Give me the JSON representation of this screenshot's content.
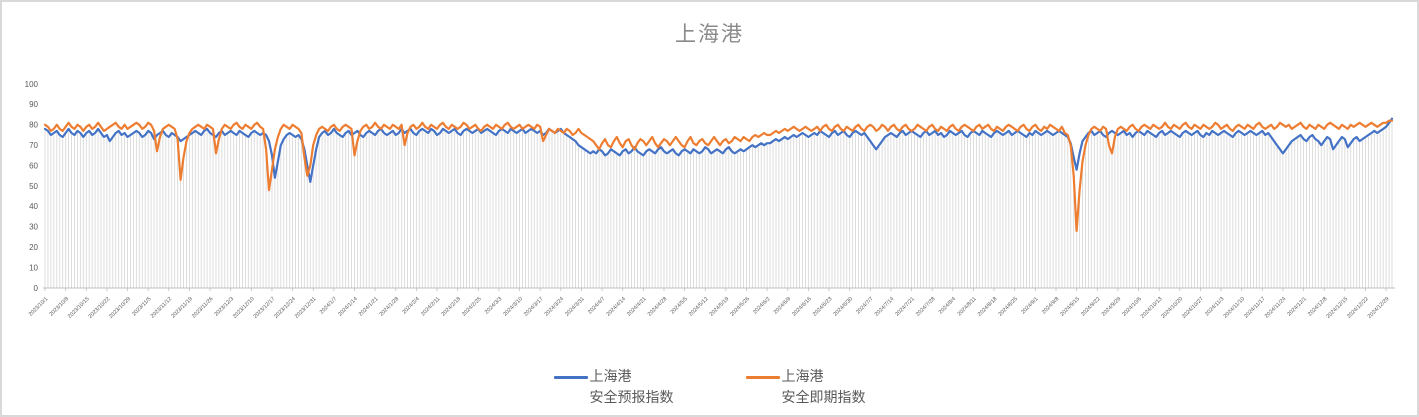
{
  "frame": {
    "border_color": "#d9d9d9",
    "background": "#ffffff"
  },
  "chart_data": {
    "type": "line",
    "title": "上海港",
    "title_color": "#8a8a8a",
    "legend_position": "bottom",
    "grid": "vertical-drop-lines",
    "grid_color": "#d9d9d9",
    "axis_color": "#bfbfbf",
    "axis_label_color": "#595959",
    "ylim": [
      0,
      100
    ],
    "y_ticks": [
      0,
      10,
      20,
      30,
      40,
      50,
      60,
      70,
      80,
      90,
      100
    ],
    "x_tick_interval_days": 7,
    "x_tick_labels": [
      "2023/10/1",
      "2023/10/8",
      "2023/10/15",
      "2023/10/22",
      "2023/10/29",
      "2023/11/5",
      "2023/11/12",
      "2023/11/19",
      "2023/11/26",
      "2023/12/3",
      "2023/12/10",
      "2023/12/17",
      "2023/12/24",
      "2023/12/31",
      "2024/1/7",
      "2024/1/14",
      "2024/1/21",
      "2024/1/28",
      "2024/2/4",
      "2024/2/11",
      "2024/2/18",
      "2024/2/25",
      "2024/3/3",
      "2024/3/10",
      "2024/3/17",
      "2024/3/24",
      "2024/3/31",
      "2024/4/7",
      "2024/4/14",
      "2024/4/21",
      "2024/4/28",
      "2024/5/5",
      "2024/5/12",
      "2024/5/19",
      "2024/5/26",
      "2024/6/2",
      "2024/6/9",
      "2024/6/16",
      "2024/6/23",
      "2024/6/30",
      "2024/7/7",
      "2024/7/14",
      "2024/7/21",
      "2024/7/28",
      "2024/8/4",
      "2024/8/11",
      "2024/8/18",
      "2024/8/25",
      "2024/9/1",
      "2024/9/8",
      "2024/9/15",
      "2024/9/22",
      "2024/9/29",
      "2024/10/6",
      "2024/10/13",
      "2024/10/20",
      "2024/10/27",
      "2024/11/3",
      "2024/11/10",
      "2024/11/17",
      "2024/11/24",
      "2024/12/1",
      "2024/12/8",
      "2024/12/15",
      "2024/12/22",
      "2024/12/29"
    ],
    "series": [
      {
        "name": "上海港 安全预报指数",
        "label_lines": [
          "上海港",
          "安全预报指数"
        ],
        "color": "#4472C4",
        "values": [
          78,
          77,
          75,
          76,
          77,
          75,
          74,
          76,
          78,
          76,
          75,
          77,
          76,
          74,
          76,
          77,
          75,
          76,
          78,
          76,
          74,
          75,
          72,
          74,
          76,
          77,
          75,
          76,
          74,
          75,
          76,
          77,
          76,
          74,
          75,
          77,
          76,
          73,
          75,
          76,
          77,
          75,
          74,
          76,
          75,
          74,
          72,
          73,
          74,
          75,
          76,
          77,
          76,
          75,
          77,
          78,
          76,
          75,
          74,
          76,
          77,
          75,
          76,
          77,
          76,
          75,
          77,
          76,
          75,
          74,
          76,
          77,
          76,
          75,
          76,
          75,
          72,
          65,
          54,
          62,
          70,
          73,
          75,
          76,
          75,
          74,
          75,
          73,
          68,
          60,
          52,
          60,
          68,
          74,
          76,
          77,
          75,
          76,
          78,
          76,
          75,
          74,
          76,
          77,
          75,
          76,
          77,
          75,
          74,
          76,
          77,
          76,
          75,
          77,
          78,
          76,
          75,
          76,
          77,
          75,
          76,
          78,
          76,
          77,
          78,
          76,
          75,
          77,
          78,
          77,
          76,
          78,
          77,
          75,
          76,
          78,
          77,
          76,
          77,
          78,
          76,
          75,
          77,
          78,
          77,
          76,
          77,
          78,
          76,
          77,
          78,
          77,
          76,
          75,
          77,
          78,
          77,
          76,
          78,
          77,
          76,
          77,
          78,
          76,
          77,
          78,
          77,
          76,
          77,
          75,
          76,
          78,
          77,
          76,
          77,
          78,
          76,
          75,
          74,
          73,
          72,
          70,
          69,
          68,
          67,
          66,
          67,
          66,
          68,
          67,
          65,
          66,
          68,
          67,
          66,
          65,
          67,
          68,
          66,
          67,
          69,
          67,
          66,
          65,
          67,
          68,
          67,
          66,
          68,
          69,
          67,
          66,
          67,
          68,
          66,
          65,
          67,
          68,
          67,
          66,
          68,
          67,
          66,
          67,
          69,
          68,
          66,
          67,
          68,
          67,
          66,
          68,
          69,
          67,
          66,
          67,
          68,
          67,
          68,
          69,
          70,
          69,
          70,
          71,
          70,
          71,
          71,
          72,
          73,
          72,
          73,
          74,
          73,
          74,
          75,
          74,
          75,
          76,
          75,
          74,
          75,
          76,
          75,
          77,
          76,
          75,
          74,
          76,
          77,
          75,
          76,
          77,
          75,
          74,
          76,
          77,
          76,
          75,
          76,
          74,
          72,
          70,
          68,
          70,
          72,
          74,
          75,
          76,
          75,
          74,
          76,
          77,
          75,
          76,
          77,
          76,
          75,
          74,
          76,
          77,
          75,
          76,
          77,
          75,
          76,
          74,
          75,
          77,
          76,
          75,
          76,
          77,
          75,
          74,
          76,
          77,
          76,
          75,
          77,
          76,
          75,
          74,
          76,
          77,
          76,
          75,
          76,
          77,
          75,
          76,
          77,
          76,
          75,
          74,
          76,
          75,
          77,
          76,
          75,
          76,
          77,
          76,
          75,
          76,
          77,
          76,
          75,
          74,
          71,
          64,
          58,
          66,
          72,
          74,
          76,
          77,
          75,
          76,
          77,
          75,
          74,
          76,
          77,
          76,
          75,
          76,
          77,
          75,
          76,
          74,
          76,
          77,
          76,
          75,
          77,
          76,
          75,
          74,
          76,
          77,
          75,
          76,
          77,
          76,
          75,
          74,
          76,
          77,
          76,
          75,
          76,
          77,
          75,
          74,
          76,
          75,
          77,
          76,
          75,
          76,
          77,
          76,
          75,
          74,
          76,
          77,
          76,
          75,
          76,
          77,
          76,
          75,
          76,
          77,
          75,
          76,
          74,
          72,
          70,
          68,
          66,
          68,
          70,
          72,
          73,
          74,
          75,
          73,
          72,
          74,
          75,
          73,
          72,
          70,
          72,
          74,
          73,
          68,
          70,
          72,
          74,
          73,
          69,
          71,
          73,
          74,
          72,
          73,
          74,
          75,
          76,
          77,
          76,
          77,
          78,
          79,
          81,
          83
        ]
      },
      {
        "name": "上海港 安全即期指数",
        "label_lines": [
          "上海港",
          "安全即期指数"
        ],
        "color": "#ED7D31",
        "values": [
          80,
          79,
          77,
          78,
          80,
          78,
          77,
          79,
          81,
          79,
          78,
          80,
          79,
          77,
          79,
          80,
          78,
          79,
          81,
          79,
          77,
          78,
          79,
          80,
          81,
          79,
          78,
          80,
          78,
          79,
          80,
          81,
          80,
          78,
          79,
          81,
          80,
          77,
          67,
          74,
          78,
          79,
          80,
          79,
          78,
          73,
          53,
          64,
          72,
          76,
          78,
          79,
          80,
          79,
          78,
          80,
          79,
          78,
          66,
          73,
          78,
          80,
          79,
          78,
          80,
          81,
          79,
          78,
          80,
          79,
          78,
          80,
          81,
          79,
          78,
          68,
          48,
          58,
          68,
          74,
          78,
          80,
          79,
          78,
          80,
          79,
          78,
          76,
          64,
          55,
          60,
          70,
          75,
          78,
          79,
          78,
          77,
          79,
          80,
          78,
          77,
          79,
          80,
          79,
          78,
          65,
          72,
          77,
          79,
          80,
          78,
          79,
          81,
          79,
          78,
          80,
          79,
          78,
          80,
          79,
          78,
          80,
          70,
          76,
          79,
          80,
          78,
          79,
          81,
          79,
          78,
          80,
          79,
          78,
          80,
          81,
          79,
          78,
          80,
          79,
          78,
          79,
          81,
          80,
          78,
          79,
          80,
          78,
          77,
          79,
          80,
          79,
          78,
          80,
          79,
          78,
          80,
          81,
          79,
          78,
          79,
          80,
          78,
          79,
          80,
          79,
          78,
          80,
          79,
          72,
          75,
          78,
          77,
          76,
          78,
          77,
          76,
          78,
          77,
          75,
          76,
          78,
          76,
          75,
          74,
          73,
          72,
          70,
          68,
          71,
          73,
          70,
          69,
          72,
          74,
          71,
          69,
          72,
          73,
          70,
          68,
          71,
          73,
          72,
          70,
          72,
          74,
          71,
          69,
          71,
          73,
          72,
          70,
          72,
          74,
          72,
          70,
          69,
          72,
          74,
          71,
          70,
          72,
          73,
          71,
          70,
          72,
          74,
          72,
          70,
          72,
          73,
          71,
          72,
          74,
          73,
          72,
          74,
          73,
          72,
          74,
          75,
          74,
          75,
          76,
          75,
          75,
          76,
          77,
          76,
          77,
          78,
          77,
          78,
          79,
          78,
          77,
          78,
          79,
          78,
          77,
          78,
          79,
          77,
          79,
          80,
          78,
          77,
          79,
          80,
          78,
          77,
          79,
          78,
          77,
          79,
          80,
          78,
          77,
          79,
          80,
          79,
          77,
          78,
          80,
          79,
          77,
          79,
          80,
          78,
          77,
          79,
          80,
          78,
          77,
          78,
          80,
          79,
          78,
          77,
          79,
          80,
          78,
          77,
          79,
          78,
          77,
          79,
          80,
          78,
          77,
          79,
          80,
          79,
          78,
          77,
          79,
          80,
          78,
          79,
          80,
          78,
          77,
          79,
          78,
          77,
          79,
          80,
          79,
          78,
          77,
          79,
          80,
          78,
          77,
          79,
          80,
          78,
          77,
          79,
          78,
          80,
          79,
          78,
          77,
          79,
          76,
          75,
          70,
          55,
          28,
          48,
          62,
          70,
          75,
          78,
          79,
          78,
          77,
          79,
          78,
          70,
          66,
          74,
          78,
          79,
          78,
          77,
          79,
          80,
          78,
          77,
          79,
          80,
          79,
          78,
          80,
          79,
          78,
          79,
          81,
          79,
          78,
          80,
          79,
          78,
          80,
          81,
          79,
          78,
          80,
          79,
          78,
          80,
          79,
          78,
          79,
          81,
          80,
          78,
          79,
          80,
          78,
          77,
          79,
          80,
          79,
          78,
          80,
          79,
          78,
          80,
          81,
          79,
          78,
          79,
          80,
          78,
          79,
          81,
          80,
          79,
          80,
          78,
          79,
          80,
          81,
          79,
          78,
          80,
          79,
          78,
          80,
          79,
          78,
          80,
          81,
          80,
          79,
          78,
          80,
          79,
          78,
          80,
          79,
          80,
          81,
          80,
          79,
          80,
          81,
          80,
          79,
          80,
          81,
          81,
          82,
          82
        ]
      }
    ]
  }
}
